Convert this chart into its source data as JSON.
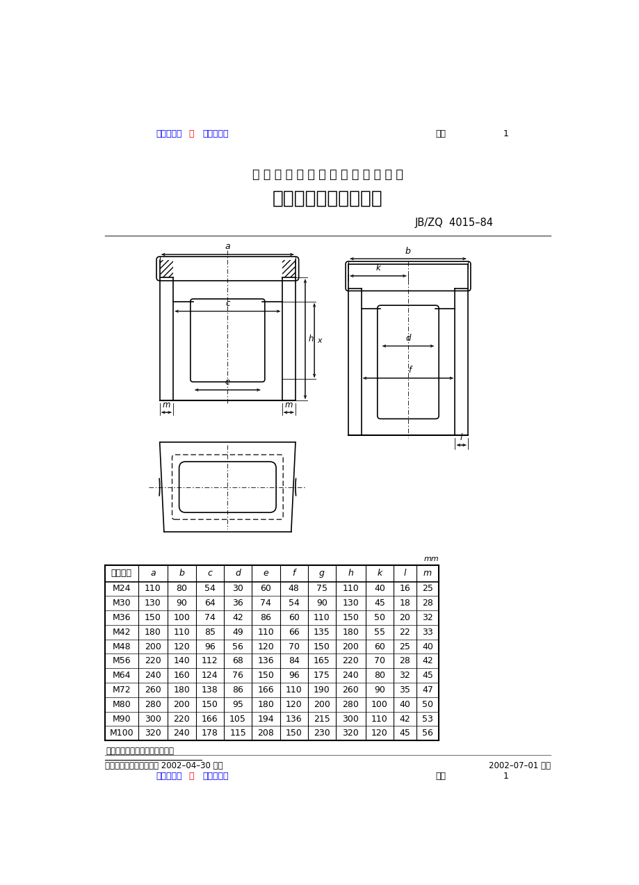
{
  "nav_color": "#0000FF",
  "nav_sep_color": "#FF0000",
  "text_color": "#000000",
  "bg_color": "#FFFFFF",
  "title_company": "中 国 第 一 重 型 机 械 集 团 公 司 标 准",
  "title_main": "铸铁、铸钢件地脚凸缘",
  "title_std": "JB/ZQ  4015–84",
  "footer_left1": "中国第一重机械集团公司 2002–04–30 批准",
  "footer_right1": "2002–07–01 实施",
  "note_text": "圆角与所从属的铸件体相一致。",
  "unit_text": "mm",
  "table_headers": [
    "公称尺寸",
    "a",
    "b",
    "c",
    "d",
    "e",
    "f",
    "g",
    "h",
    "k",
    "l",
    "m"
  ],
  "table_data": [
    [
      "M24",
      110,
      80,
      54,
      30,
      60,
      48,
      75,
      110,
      40,
      16,
      25
    ],
    [
      "M30",
      130,
      90,
      64,
      36,
      74,
      54,
      90,
      130,
      45,
      18,
      28
    ],
    [
      "M36",
      150,
      100,
      74,
      42,
      86,
      60,
      110,
      150,
      50,
      20,
      32
    ],
    [
      "M42",
      180,
      110,
      85,
      49,
      110,
      66,
      135,
      180,
      55,
      22,
      33
    ],
    [
      "M48",
      200,
      120,
      96,
      56,
      120,
      70,
      150,
      200,
      60,
      25,
      40
    ],
    [
      "M56",
      220,
      140,
      112,
      68,
      136,
      84,
      165,
      220,
      70,
      28,
      42
    ],
    [
      "M64",
      240,
      160,
      124,
      76,
      150,
      96,
      175,
      240,
      80,
      32,
      45
    ],
    [
      "M72",
      260,
      180,
      138,
      86,
      166,
      110,
      190,
      260,
      90,
      35,
      47
    ],
    [
      "M80",
      280,
      200,
      150,
      95,
      180,
      120,
      200,
      280,
      100,
      40,
      50
    ],
    [
      "M90",
      300,
      220,
      166,
      105,
      194,
      136,
      215,
      300,
      110,
      42,
      53
    ],
    [
      "M100",
      320,
      240,
      178,
      115,
      208,
      150,
      230,
      320,
      120,
      45,
      56
    ]
  ]
}
